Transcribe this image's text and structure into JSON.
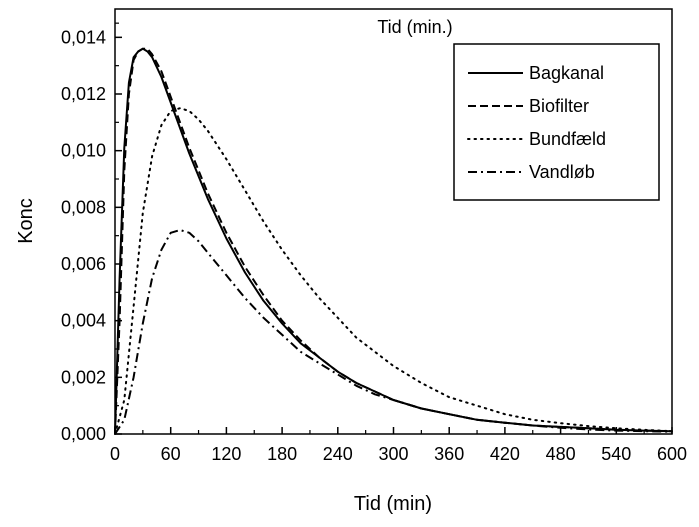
{
  "chart_data": {
    "type": "line",
    "top_label": "Tid (min.)",
    "xlabel": "Tid (min)",
    "ylabel": "Konc",
    "xlim": [
      0,
      600
    ],
    "ylim": [
      0,
      0.015
    ],
    "x_ticks": [
      0,
      60,
      120,
      180,
      240,
      300,
      360,
      420,
      480,
      540,
      600
    ],
    "x_tick_labels": [
      "0",
      "60",
      "120",
      "180",
      "240",
      "300",
      "360",
      "420",
      "480",
      "540",
      "600"
    ],
    "y_ticks": [
      0,
      0.002,
      0.004,
      0.006,
      0.008,
      0.01,
      0.012,
      0.014
    ],
    "y_tick_labels": [
      "0,000",
      "0,002",
      "0,004",
      "0,006",
      "0,008",
      "0,010",
      "0,012",
      "0,014"
    ],
    "grid": false,
    "legend_position": "top-right",
    "series": [
      {
        "name": "Bagkanal",
        "dash": "solid",
        "x": [
          0,
          5,
          10,
          15,
          20,
          25,
          30,
          35,
          40,
          50,
          60,
          70,
          80,
          90,
          100,
          120,
          140,
          160,
          180,
          200,
          220,
          240,
          260,
          280,
          300,
          330,
          360,
          390,
          420,
          450,
          480,
          510,
          540,
          570,
          600
        ],
        "y": [
          0.0,
          0.0055,
          0.0101,
          0.0124,
          0.0133,
          0.0135,
          0.0136,
          0.0135,
          0.0133,
          0.0126,
          0.0117,
          0.0108,
          0.0099,
          0.0091,
          0.0083,
          0.0069,
          0.0057,
          0.0047,
          0.0039,
          0.0032,
          0.0027,
          0.0022,
          0.0018,
          0.0015,
          0.0012,
          0.0009,
          0.0007,
          0.0005,
          0.0004,
          0.0003,
          0.00025,
          0.0002,
          0.00015,
          0.00012,
          0.0001
        ]
      },
      {
        "name": "Biofilter",
        "dash": "dashed",
        "x": [
          0,
          5,
          10,
          15,
          20,
          25,
          30,
          35,
          40,
          50,
          60,
          70,
          80,
          90,
          100,
          120,
          140,
          160,
          180,
          200,
          220,
          240,
          260,
          280,
          300,
          330,
          360,
          390,
          420,
          450,
          480,
          510,
          540,
          570,
          600
        ],
        "y": [
          0.0,
          0.004,
          0.0093,
          0.012,
          0.0132,
          0.0135,
          0.0136,
          0.0136,
          0.0134,
          0.0128,
          0.0119,
          0.011,
          0.0101,
          0.0093,
          0.0085,
          0.0071,
          0.0059,
          0.0049,
          0.004,
          0.0033,
          0.0027,
          0.0022,
          0.0018,
          0.0015,
          0.0012,
          0.0009,
          0.0007,
          0.0005,
          0.0004,
          0.0003,
          0.00025,
          0.0002,
          0.00015,
          0.00012,
          0.0001
        ]
      },
      {
        "name": "Bundfæld",
        "dash": "dotted",
        "x": [
          0,
          10,
          20,
          30,
          40,
          50,
          60,
          70,
          80,
          90,
          100,
          120,
          140,
          160,
          180,
          200,
          220,
          240,
          260,
          280,
          300,
          330,
          360,
          390,
          420,
          450,
          480,
          510,
          540,
          570,
          600
        ],
        "y": [
          0.0,
          0.0012,
          0.0045,
          0.0078,
          0.0098,
          0.0109,
          0.0114,
          0.0115,
          0.0114,
          0.0111,
          0.0107,
          0.0097,
          0.0086,
          0.0075,
          0.0065,
          0.0056,
          0.0048,
          0.0041,
          0.0034,
          0.0029,
          0.0024,
          0.0018,
          0.0013,
          0.001,
          0.0007,
          0.0005,
          0.00038,
          0.00028,
          0.0002,
          0.00015,
          0.0001
        ]
      },
      {
        "name": "Vandløb",
        "dash": "dashdot",
        "x": [
          0,
          10,
          20,
          30,
          40,
          50,
          60,
          70,
          80,
          90,
          100,
          120,
          140,
          160,
          180,
          200,
          220,
          240,
          260,
          280,
          300,
          330,
          360,
          390,
          420,
          450,
          480,
          510,
          540,
          570,
          600
        ],
        "y": [
          0.0,
          0.0005,
          0.002,
          0.0039,
          0.0055,
          0.0065,
          0.0071,
          0.0072,
          0.0071,
          0.0068,
          0.0064,
          0.0056,
          0.0048,
          0.0041,
          0.0035,
          0.0029,
          0.0025,
          0.0021,
          0.0017,
          0.0014,
          0.0012,
          0.0009,
          0.0007,
          0.0005,
          0.0004,
          0.0003,
          0.00022,
          0.00016,
          0.00012,
          0.0001,
          8e-05
        ]
      }
    ]
  }
}
